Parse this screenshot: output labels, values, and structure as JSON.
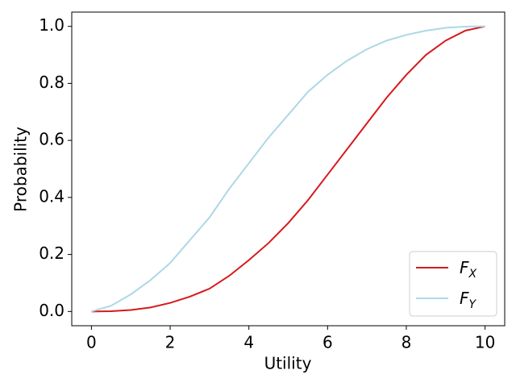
{
  "chart_data": {
    "type": "line",
    "x": [
      0,
      0.5,
      1,
      1.5,
      2,
      2.5,
      3,
      3.5,
      4,
      4.5,
      5,
      5.5,
      6,
      6.5,
      7,
      7.5,
      8,
      8.5,
      9,
      9.5,
      10
    ],
    "series": [
      {
        "name": "F_X",
        "color": "#d7191c",
        "values": [
          0,
          0.001,
          0.005,
          0.014,
          0.03,
          0.052,
          0.08,
          0.125,
          0.18,
          0.24,
          0.31,
          0.39,
          0.48,
          0.57,
          0.66,
          0.75,
          0.83,
          0.9,
          0.95,
          0.985,
          1.0
        ]
      },
      {
        "name": "F_Y",
        "color": "#add8e6",
        "values": [
          0,
          0.02,
          0.06,
          0.11,
          0.17,
          0.25,
          0.33,
          0.43,
          0.52,
          0.61,
          0.69,
          0.77,
          0.83,
          0.88,
          0.92,
          0.95,
          0.97,
          0.985,
          0.995,
          0.999,
          1.0
        ]
      }
    ],
    "x_label": "Utility",
    "y_label": "Probability",
    "xlim": [
      -0.5,
      10.5
    ],
    "ylim": [
      -0.05,
      1.05
    ],
    "xticks": [
      0,
      2,
      4,
      6,
      8,
      10
    ],
    "yticks": [
      {
        "value": 0,
        "label": "0.0"
      },
      {
        "value": 0.2,
        "label": "0.2"
      },
      {
        "value": 0.4,
        "label": "0.4"
      },
      {
        "value": 0.6,
        "label": "0.6"
      },
      {
        "value": 0.8,
        "label": "0.8"
      },
      {
        "value": 1,
        "label": "1.0"
      }
    ],
    "legend": "lower right",
    "grid": false
  }
}
